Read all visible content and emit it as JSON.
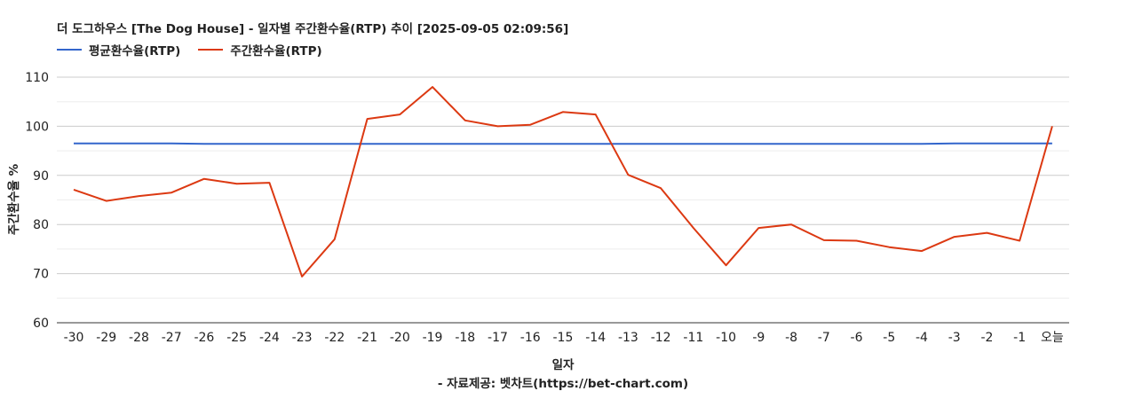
{
  "chart_data": {
    "type": "line",
    "title": "더 도그하우스 [The Dog House] - 일자별 주간환수율(RTP) 추이 [2025-09-05 02:09:56]",
    "xlabel": "일자",
    "ylabel": "주간환수율 %",
    "source": "- 자료제공: 벳차트(https://bet-chart.com)",
    "categories": [
      "-30",
      "-29",
      "-28",
      "-27",
      "-26",
      "-25",
      "-24",
      "-23",
      "-22",
      "-21",
      "-20",
      "-19",
      "-18",
      "-17",
      "-16",
      "-15",
      "-14",
      "-13",
      "-12",
      "-11",
      "-10",
      "-9",
      "-8",
      "-7",
      "-6",
      "-5",
      "-4",
      "-3",
      "-2",
      "-1",
      "오늘"
    ],
    "yticks": [
      60,
      70,
      80,
      90,
      100,
      110
    ],
    "ylim": [
      60,
      110
    ],
    "grid": true,
    "legend_position": "top-left",
    "series": [
      {
        "name": "평균환수율(RTP)",
        "color": "#3366cc",
        "values": [
          96.5,
          96.5,
          96.5,
          96.5,
          96.4,
          96.4,
          96.4,
          96.4,
          96.4,
          96.4,
          96.4,
          96.4,
          96.4,
          96.4,
          96.4,
          96.4,
          96.4,
          96.4,
          96.4,
          96.4,
          96.4,
          96.4,
          96.4,
          96.4,
          96.4,
          96.4,
          96.4,
          96.5,
          96.5,
          96.5,
          96.5
        ]
      },
      {
        "name": "주간환수율(RTP)",
        "color": "#dc3912",
        "values": [
          87.1,
          84.8,
          85.8,
          86.5,
          89.3,
          88.3,
          88.5,
          69.4,
          77.0,
          101.5,
          102.4,
          108.0,
          101.2,
          100.0,
          100.3,
          102.9,
          102.4,
          90.1,
          87.4,
          79.3,
          71.7,
          79.3,
          80.0,
          76.8,
          76.7,
          75.4,
          74.6,
          77.5,
          78.3,
          76.7,
          100.0
        ]
      }
    ]
  }
}
